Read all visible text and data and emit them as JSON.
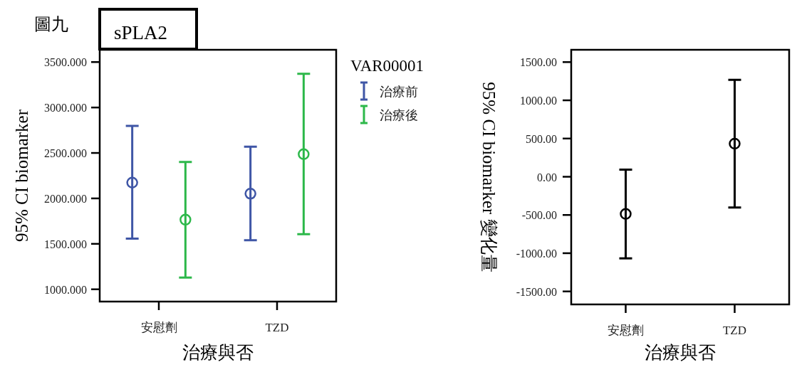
{
  "chart_data": [
    {
      "type": "scatter",
      "title": "sPLA2",
      "annotations": [
        "圖九"
      ],
      "xlabel": "治療與否",
      "ylabel": "95% CI biomarker",
      "legend_title": "VAR00001",
      "legend": "right",
      "marker": "circle",
      "categories": [
        "安慰劑",
        "TZD"
      ],
      "series": [
        {
          "name": "治療前",
          "color": "#3f56a6",
          "values": [
            2174,
            2052
          ],
          "errors": [
            [
              1557,
              2797
            ],
            [
              1539,
              2568
            ]
          ]
        },
        {
          "name": "治療後",
          "color": "#2db84a",
          "values": [
            1766,
            2487
          ],
          "errors": [
            [
              1130,
              2401
            ],
            [
              1607,
              3370
            ]
          ]
        }
      ],
      "ylim": [
        865,
        3635
      ],
      "yticks": [
        {
          "value": 1000,
          "label": "1000.000"
        },
        {
          "value": 1500,
          "label": "1500.000"
        },
        {
          "value": 2000,
          "label": "2000.000"
        },
        {
          "value": 2500,
          "label": "2500.000"
        },
        {
          "value": 3000,
          "label": "3000.000"
        },
        {
          "value": 3500,
          "label": "3500.000"
        }
      ]
    },
    {
      "type": "scatter",
      "xlabel": "治療與否",
      "ylabel": "95% CI biomarker 變化量",
      "marker": "circle",
      "categories": [
        "安慰劑",
        "TZD"
      ],
      "series": [
        {
          "color": "#000000",
          "values": [
            -486,
            433
          ],
          "errors": [
            [
              -1067,
              93
            ],
            [
              -402,
              1268
            ]
          ]
        }
      ],
      "ylim": [
        -1670,
        1661
      ],
      "yticks": [
        {
          "value": -1500,
          "label": "-1500.00"
        },
        {
          "value": -1000,
          "label": "-1000.00"
        },
        {
          "value": -500,
          "label": "-500.00"
        },
        {
          "value": 0,
          "label": "0.00"
        },
        {
          "value": 500,
          "label": "500.00"
        },
        {
          "value": 1000,
          "label": "1000.00"
        },
        {
          "value": 1500,
          "label": "1500.00"
        }
      ]
    }
  ]
}
